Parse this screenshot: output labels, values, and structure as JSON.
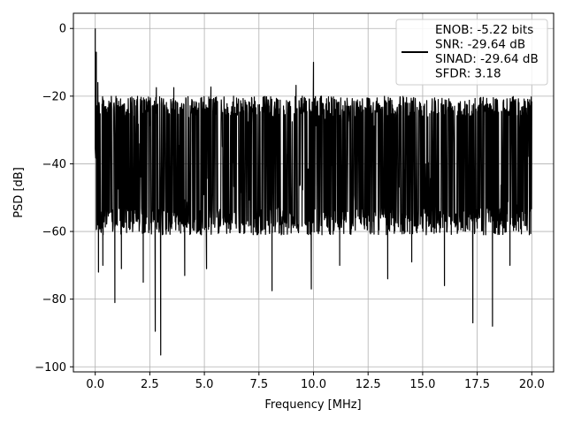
{
  "chart_data": {
    "type": "line",
    "title": "",
    "xlabel": "Frequency [MHz]",
    "ylabel": "PSD [dB]",
    "xlim": [
      -1.0,
      21.0
    ],
    "ylim": [
      -101.5,
      4.5
    ],
    "grid": true,
    "legend_position": "top-right",
    "xticks": [
      0.0,
      2.5,
      5.0,
      7.5,
      10.0,
      12.5,
      15.0,
      17.5,
      20.0
    ],
    "xtick_labels": [
      "0.0",
      "2.5",
      "5.0",
      "7.5",
      "10.0",
      "12.5",
      "15.0",
      "17.5",
      "20.0"
    ],
    "yticks": [
      0,
      -20,
      -40,
      -60,
      -80,
      -100
    ],
    "ytick_labels": [
      "0",
      "−20",
      "−40",
      "−60",
      "−80",
      "−100"
    ],
    "series": [
      {
        "name": "ENOB: -5.22 bits\nSNR: -29.64 dB\nSINAD: -29.64 dB\nSFDR: 3.18",
        "color": "#000000",
        "x_range": [
          0.0,
          20.0
        ],
        "floor_band": [
          -60,
          -20
        ],
        "peaks": [
          {
            "x": 0.0,
            "y": 0.0
          },
          {
            "x": 0.05,
            "y": -7.0
          },
          {
            "x": 0.12,
            "y": -16.0
          },
          {
            "x": 10.0,
            "y": -10.0
          },
          {
            "x": 2.8,
            "y": -17.5
          },
          {
            "x": 3.6,
            "y": -17.5
          },
          {
            "x": 5.3,
            "y": -17.3
          },
          {
            "x": 9.2,
            "y": -16.8
          }
        ],
        "dips": [
          {
            "x": 0.15,
            "y": -72.0
          },
          {
            "x": 0.35,
            "y": -70.0
          },
          {
            "x": 0.9,
            "y": -81.0
          },
          {
            "x": 1.2,
            "y": -71.0
          },
          {
            "x": 2.2,
            "y": -75.0
          },
          {
            "x": 2.75,
            "y": -89.5
          },
          {
            "x": 3.0,
            "y": -96.5
          },
          {
            "x": 4.1,
            "y": -73.0
          },
          {
            "x": 5.1,
            "y": -71.0
          },
          {
            "x": 8.1,
            "y": -77.5
          },
          {
            "x": 9.9,
            "y": -77.0
          },
          {
            "x": 11.2,
            "y": -70.0
          },
          {
            "x": 13.4,
            "y": -74.0
          },
          {
            "x": 14.5,
            "y": -69.0
          },
          {
            "x": 16.0,
            "y": -76.0
          },
          {
            "x": 17.3,
            "y": -87.0
          },
          {
            "x": 18.2,
            "y": -88.0
          },
          {
            "x": 19.0,
            "y": -70.0
          }
        ]
      }
    ]
  }
}
